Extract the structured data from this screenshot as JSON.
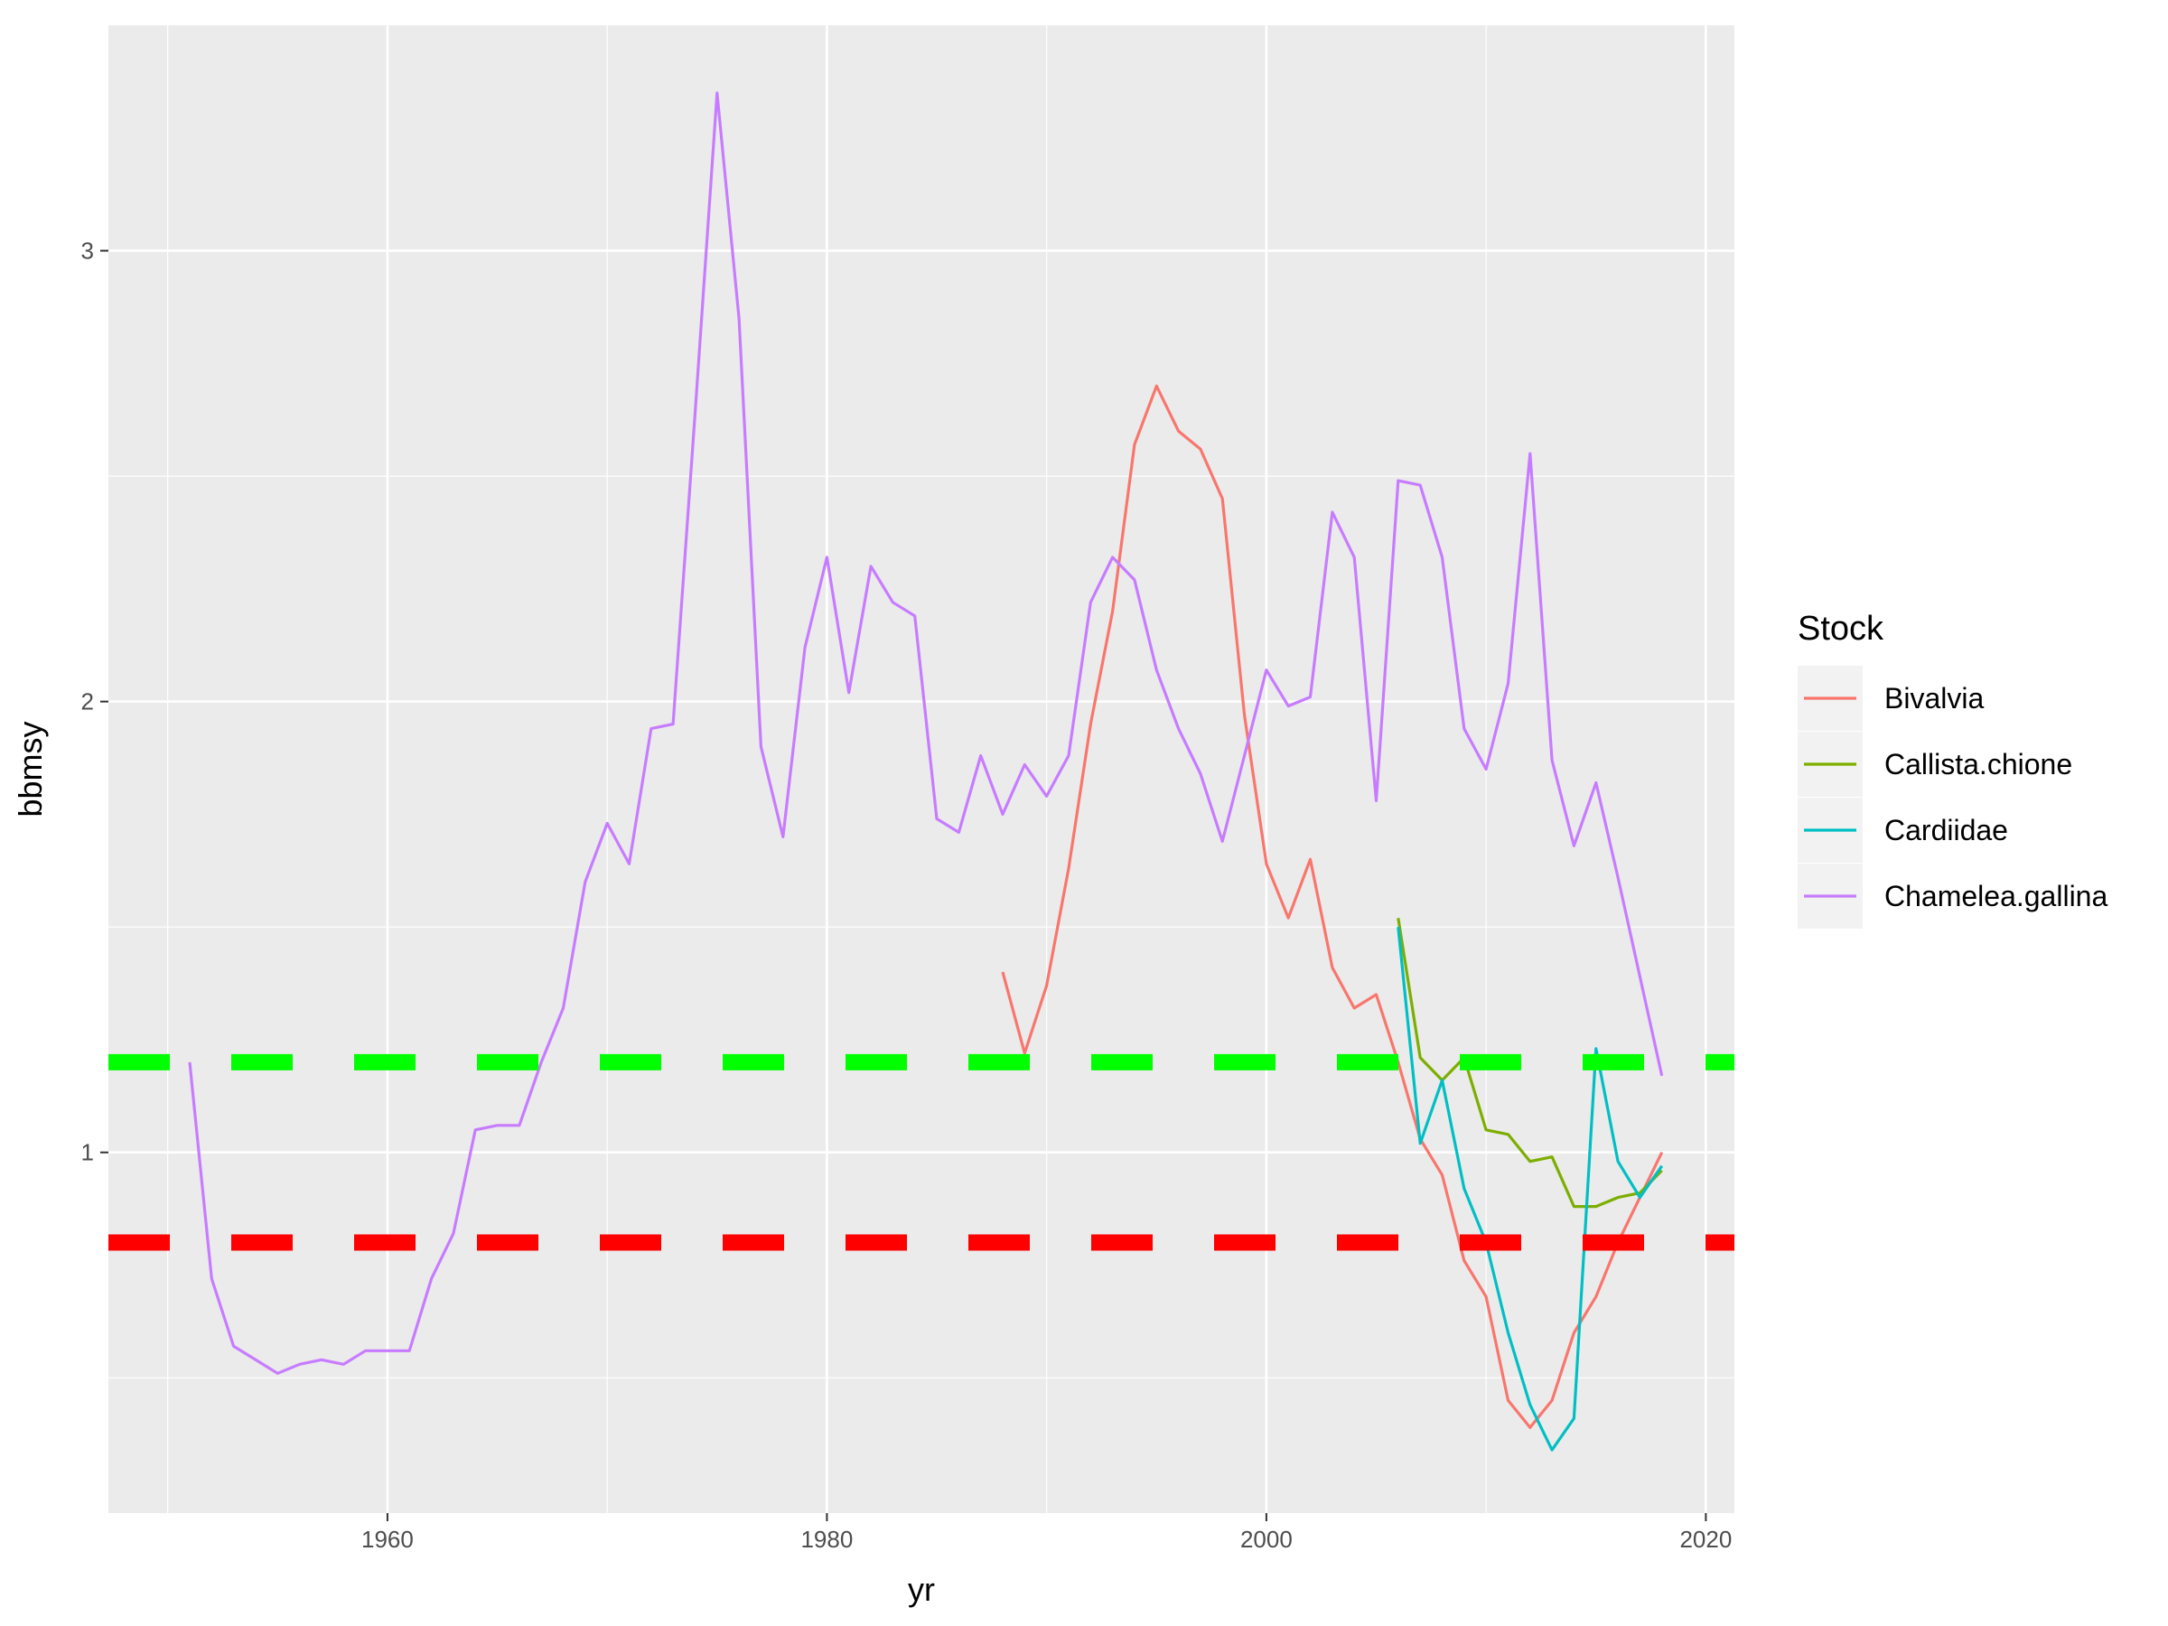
{
  "chart_data": {
    "type": "line",
    "title": "",
    "xlabel": "yr",
    "ylabel": "bbmsy",
    "xlim": [
      1947.3,
      2021.3
    ],
    "ylim": [
      0.2,
      3.5
    ],
    "x_ticks": [
      1960,
      1980,
      2000,
      2020
    ],
    "x_tick_labels": [
      "1960",
      "1980",
      "2000",
      "2020"
    ],
    "x_minor_ticks": [
      1950,
      1970,
      1990,
      2010
    ],
    "y_ticks": [
      1,
      2,
      3
    ],
    "y_tick_labels": [
      "1",
      "2",
      "3"
    ],
    "y_minor_ticks": [
      0.5,
      1.5,
      2.5
    ],
    "grid": true,
    "panel_background": "#ebebeb",
    "legend": {
      "title": "Stock",
      "placement": "right",
      "entries": [
        "Bivalvia",
        "Callista.chione",
        "Cardiidae",
        "Chamelea.gallina"
      ]
    },
    "series": [
      {
        "name": "Bivalvia",
        "color": "#F8766D",
        "x": [
          1988,
          1989,
          1990,
          1991,
          1992,
          1993,
          1994,
          1995,
          1996,
          1997,
          1998,
          1999,
          2000,
          2001,
          2002,
          2003,
          2004,
          2005,
          2006,
          2007,
          2008,
          2009,
          2010,
          2011,
          2012,
          2013,
          2014,
          2015,
          2016,
          2017,
          2018
        ],
        "y": [
          1.4,
          1.22,
          1.37,
          1.63,
          1.95,
          2.2,
          2.57,
          2.7,
          2.6,
          2.56,
          2.45,
          1.97,
          1.64,
          1.52,
          1.65,
          1.41,
          1.32,
          1.35,
          1.2,
          1.03,
          0.95,
          0.76,
          0.68,
          0.45,
          0.39,
          0.45,
          0.6,
          0.68,
          0.8,
          0.9,
          1.0
        ]
      },
      {
        "name": "Callista.chione",
        "color": "#7CAE00",
        "x": [
          2006,
          2007,
          2008,
          2009,
          2010,
          2011,
          2012,
          2013,
          2014,
          2015,
          2016,
          2017,
          2018
        ],
        "y": [
          1.52,
          1.21,
          1.16,
          1.21,
          1.05,
          1.04,
          0.98,
          0.99,
          0.88,
          0.88,
          0.9,
          0.91,
          0.96
        ]
      },
      {
        "name": "Cardiidae",
        "color": "#00BFC4",
        "x": [
          2006,
          2007,
          2008,
          2009,
          2010,
          2011,
          2012,
          2013,
          2014,
          2015,
          2016,
          2017,
          2018
        ],
        "y": [
          1.5,
          1.02,
          1.16,
          0.92,
          0.8,
          0.6,
          0.44,
          0.34,
          0.41,
          1.23,
          0.98,
          0.9,
          0.97
        ]
      },
      {
        "name": "Chamelea.gallina",
        "color": "#C77CFF",
        "x": [
          1951,
          1952,
          1953,
          1954,
          1955,
          1956,
          1957,
          1958,
          1959,
          1960,
          1961,
          1962,
          1963,
          1964,
          1965,
          1966,
          1967,
          1968,
          1969,
          1970,
          1971,
          1972,
          1973,
          1974,
          1975,
          1976,
          1977,
          1978,
          1979,
          1980,
          1981,
          1982,
          1983,
          1984,
          1985,
          1986,
          1987,
          1988,
          1989,
          1990,
          1991,
          1992,
          1993,
          1994,
          1995,
          1996,
          1997,
          1998,
          1999,
          2000,
          2001,
          2002,
          2003,
          2004,
          2005,
          2006,
          2007,
          2008,
          2009,
          2010,
          2011,
          2012,
          2013,
          2014,
          2015,
          2016,
          2017,
          2018
        ],
        "y": [
          1.2,
          0.72,
          0.57,
          0.54,
          0.51,
          0.53,
          0.54,
          0.53,
          0.56,
          0.56,
          0.56,
          0.72,
          0.82,
          1.05,
          1.06,
          1.06,
          1.2,
          1.32,
          1.6,
          1.73,
          1.64,
          1.94,
          1.95,
          2.64,
          3.35,
          2.85,
          1.9,
          1.7,
          2.12,
          2.32,
          2.02,
          2.3,
          2.22,
          2.19,
          1.74,
          1.71,
          1.88,
          1.75,
          1.86,
          1.79,
          1.88,
          2.22,
          2.32,
          2.27,
          2.07,
          1.94,
          1.84,
          1.69,
          1.88,
          2.07,
          1.99,
          2.01,
          2.42,
          2.32,
          1.78,
          2.49,
          2.48,
          2.32,
          1.94,
          1.85,
          2.04,
          2.55,
          1.87,
          1.68,
          1.82,
          1.61,
          1.39,
          1.17
        ]
      }
    ],
    "reference_lines": [
      {
        "y": 1.2,
        "color": "#00FF00",
        "style": "dashed"
      },
      {
        "y": 0.8,
        "color": "#FF0000",
        "style": "dashed"
      }
    ]
  }
}
